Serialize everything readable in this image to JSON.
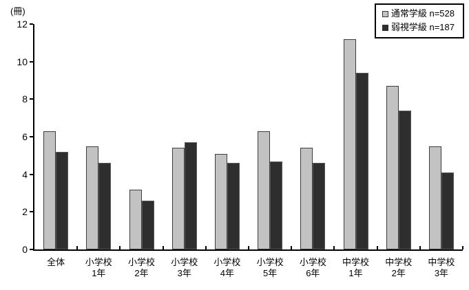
{
  "chart_data": {
    "type": "bar",
    "title": "",
    "unit_label": "(冊)",
    "xlabel": "",
    "ylabel": "冊",
    "ylim": [
      0,
      12
    ],
    "y_ticks": [
      0,
      2,
      4,
      6,
      8,
      10,
      12
    ],
    "grid": false,
    "legend_position": "top-right",
    "categories": [
      [
        "全体",
        ""
      ],
      [
        "小学校",
        "1年"
      ],
      [
        "小学校",
        "2年"
      ],
      [
        "小学校",
        "3年"
      ],
      [
        "小学校",
        "4年"
      ],
      [
        "小学校",
        "5年"
      ],
      [
        "小学校",
        "6年"
      ],
      [
        "中学校",
        "1年"
      ],
      [
        "中学校",
        "2年"
      ],
      [
        "中学校",
        "3年"
      ]
    ],
    "series": [
      {
        "name": "通常学級 n=528",
        "color": "#c2c2c2",
        "border_color": "#3c3c3c",
        "values": [
          6.3,
          5.5,
          3.2,
          5.4,
          5.1,
          6.3,
          5.4,
          11.2,
          8.7,
          5.5
        ]
      },
      {
        "name": "弱視学級 n=187",
        "color": "#2e2e2e",
        "border_color": "#585858",
        "values": [
          5.2,
          4.6,
          2.6,
          5.7,
          4.6,
          4.7,
          4.6,
          9.4,
          7.4,
          4.1
        ]
      }
    ]
  },
  "colors": {
    "background": "#ffffff",
    "axis": "#000000",
    "text": "#000000"
  }
}
